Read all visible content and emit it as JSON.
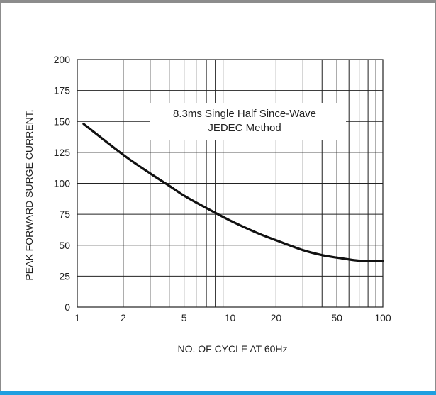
{
  "colors": {
    "frame": "#8c8c8c",
    "accent_bar": "#1f9fe0",
    "grid": "#222222",
    "curve": "#111111"
  },
  "chart_data": {
    "type": "line",
    "title": "",
    "annotation": [
      "8.3ms Single Half Since-Wave",
      "JEDEC Method"
    ],
    "xlabel": "NO. OF CYCLE AT 60Hz",
    "ylabel": "PEAK FORWARD SURGE CURRENT,",
    "x_scale": "log",
    "xlim": [
      1,
      100
    ],
    "ylim": [
      0,
      200
    ],
    "x_ticks": [
      1,
      2,
      5,
      10,
      20,
      50,
      100
    ],
    "x_tick_labels": [
      "1",
      "2",
      "5",
      "10",
      "20",
      "50",
      "100"
    ],
    "x_minor_gridlines": [
      3,
      4,
      6,
      7,
      8,
      9,
      30,
      40,
      60,
      70,
      80,
      90
    ],
    "y_ticks": [
      0,
      25,
      50,
      75,
      100,
      125,
      150,
      175,
      200
    ],
    "y_tick_labels": [
      "0",
      "25",
      "50",
      "75",
      "100",
      "125",
      "150",
      "175",
      "200"
    ],
    "grid": true,
    "series": [
      {
        "x": [
          1.1,
          2,
          3,
          4,
          5,
          7,
          10,
          15,
          20,
          30,
          40,
          50,
          70,
          100
        ],
        "y": [
          148,
          123,
          108,
          98,
          90,
          80,
          70,
          60,
          54,
          46,
          42,
          40,
          37.5,
          37
        ]
      }
    ]
  }
}
